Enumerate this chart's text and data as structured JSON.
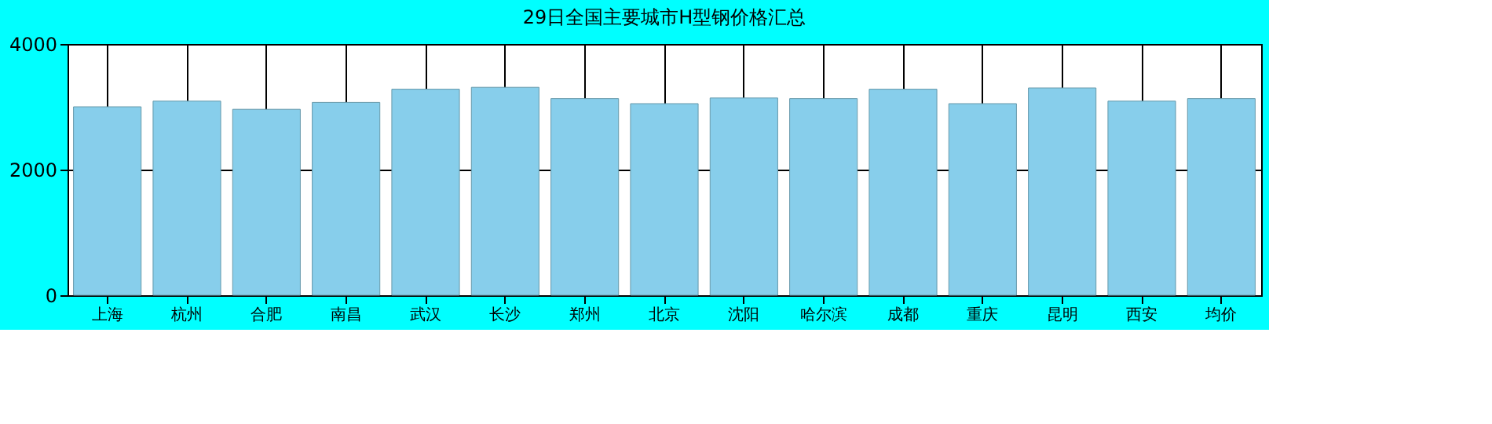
{
  "chart_data": {
    "type": "bar",
    "title": "29日全国主要城市H型钢价格汇总",
    "categories": [
      "上海",
      "杭州",
      "合肥",
      "南昌",
      "武汉",
      "长沙",
      "郑州",
      "北京",
      "沈阳",
      "哈尔滨",
      "成都",
      "重庆",
      "昆明",
      "西安",
      "均价"
    ],
    "values": [
      3000,
      3090,
      2960,
      3070,
      3280,
      3310,
      3130,
      3050,
      3140,
      3130,
      3280,
      3050,
      3300,
      3090,
      3130
    ],
    "color": "#87ceeb",
    "ylim": [
      0,
      4000
    ],
    "yticks": [
      0,
      2000,
      4000
    ],
    "grid": true
  }
}
